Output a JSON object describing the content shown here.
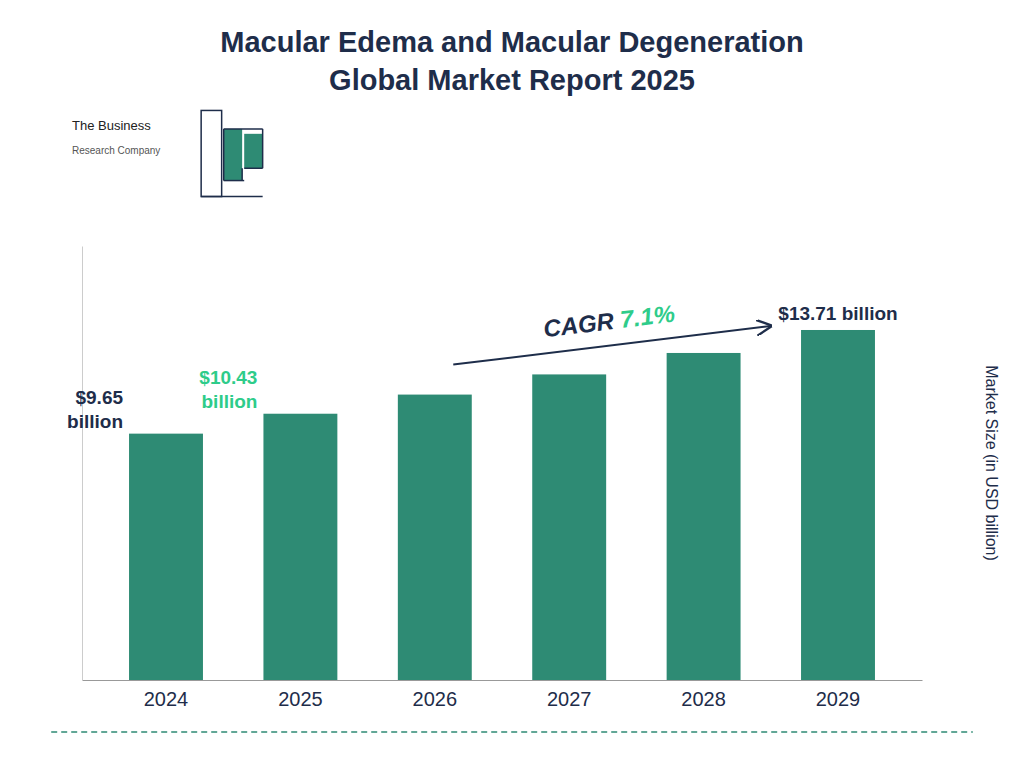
{
  "chart_data": {
    "type": "bar",
    "title": "Macular Edema and Macular Degeneration\nGlobal Market Report 2025",
    "ylabel": "Market Size (in USD billion)",
    "categories": [
      "2024",
      "2025",
      "2026",
      "2027",
      "2028",
      "2029"
    ],
    "values": [
      9.65,
      10.43,
      11.18,
      11.97,
      12.81,
      13.71
    ],
    "color": "#2e8b74",
    "ylim": [
      0,
      17
    ],
    "yticks": [],
    "tick_labels": "x",
    "grid": false,
    "annotations": [
      {
        "text": "$9.65\nbillion",
        "category": "2024",
        "color": "#1e2d4a"
      },
      {
        "text": "$10.43\nbillion",
        "category": "2025",
        "color": "#2ecc8a"
      },
      {
        "text": "$13.71 billion",
        "category": "2029",
        "color": "#1e2d4a"
      },
      {
        "text": "CAGR",
        "color": "#1e2d4a"
      },
      {
        "text": " 7.1%",
        "color": "#2ecc8a"
      },
      {
        "text": "The Business",
        "color": "#222222"
      },
      {
        "text": "Research Company",
        "color": "#555555"
      }
    ]
  }
}
